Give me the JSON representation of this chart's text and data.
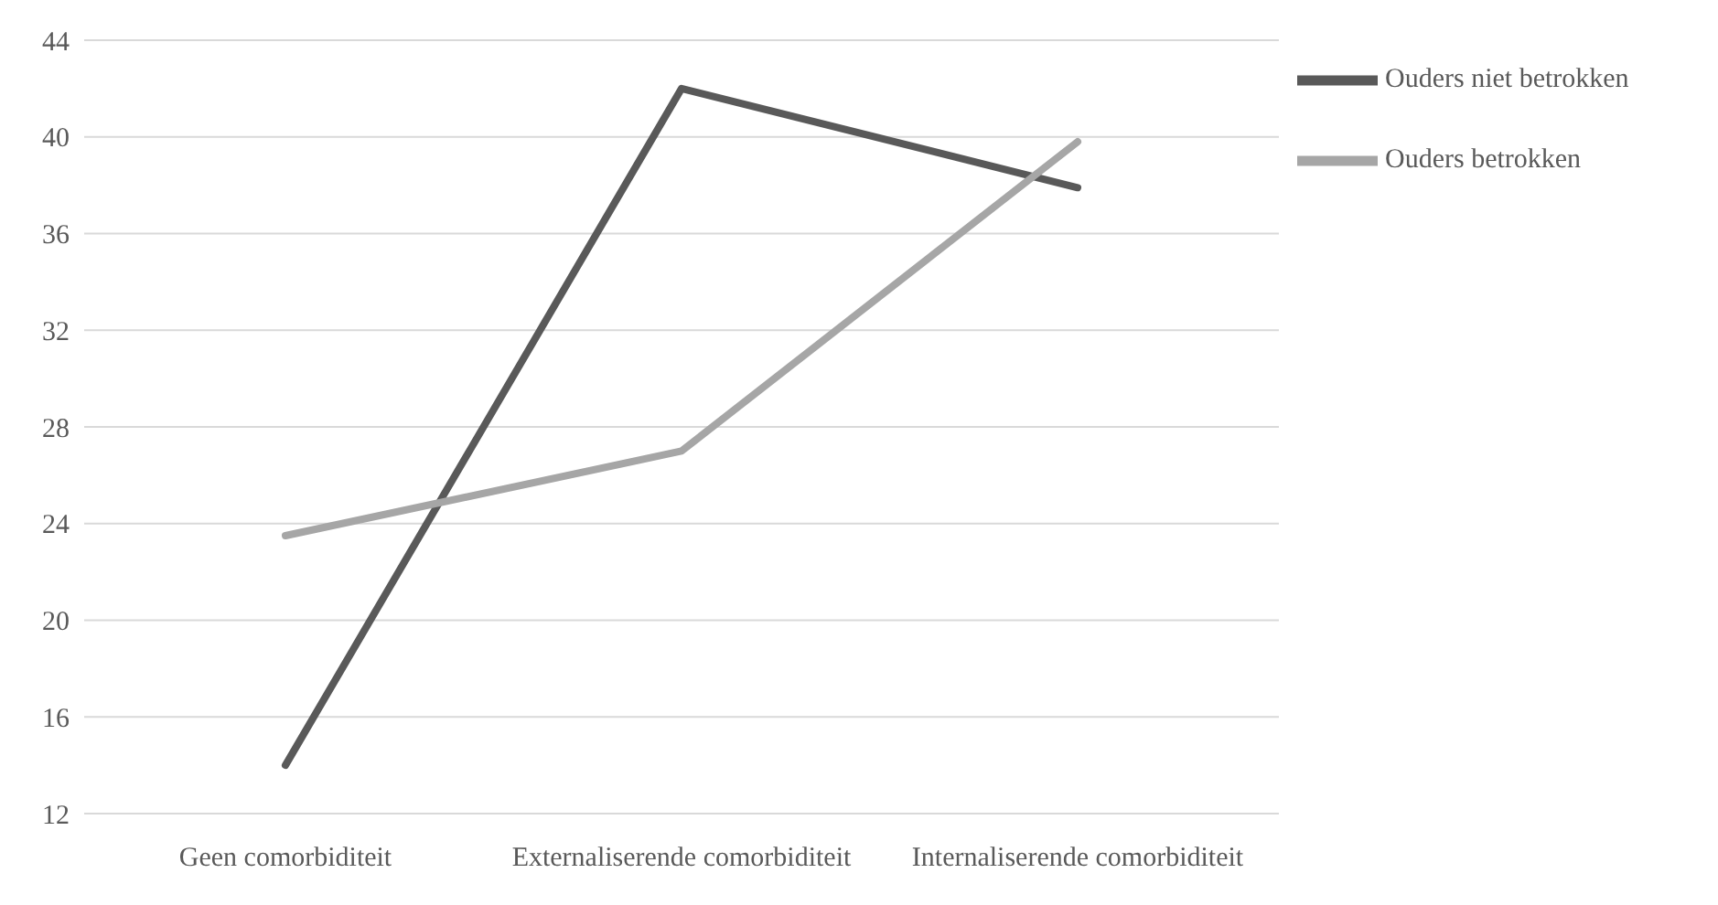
{
  "chart_data": {
    "type": "line",
    "categories": [
      "Geen comorbiditeit",
      "Externaliserende comorbiditeit",
      "Internaliserende comorbiditeit"
    ],
    "series": [
      {
        "name": "Ouders niet betrokken",
        "color": "#595959",
        "values": [
          14,
          42,
          37.9
        ]
      },
      {
        "name": "Ouders betrokken",
        "color": "#a6a6a6",
        "values": [
          23.5,
          27,
          39.8
        ]
      }
    ],
    "ylim": [
      12,
      44
    ],
    "yticks": [
      12,
      16,
      20,
      24,
      28,
      32,
      36,
      40,
      44
    ],
    "grid": "y",
    "legend": "top right",
    "marker": "none",
    "line_style": "solid"
  }
}
